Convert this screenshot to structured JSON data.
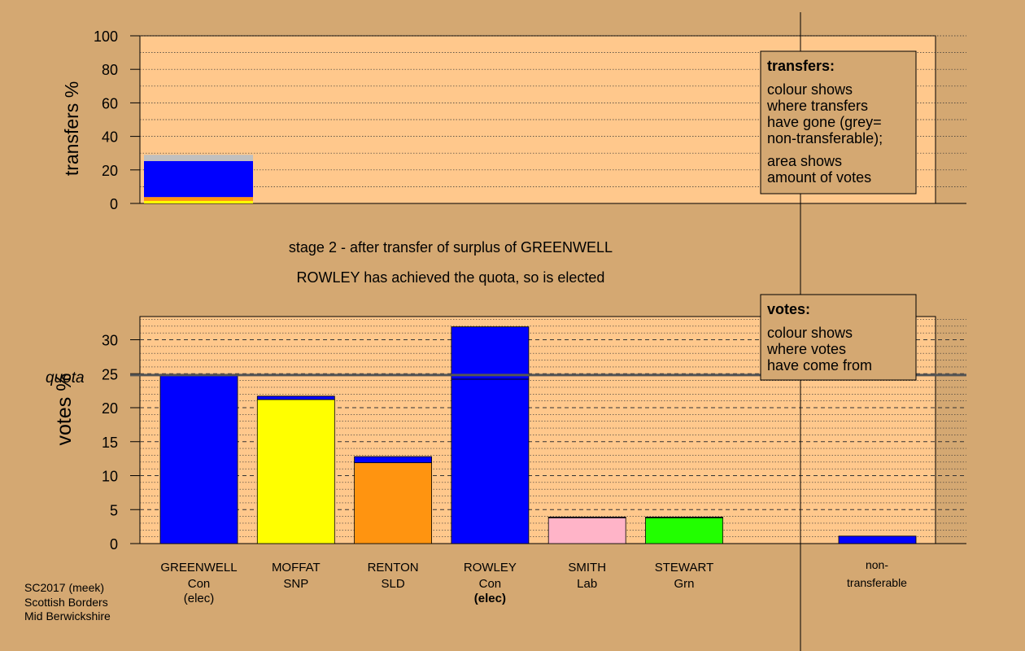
{
  "colors": {
    "background": "#d4a872",
    "plot_area": "#ffc88c",
    "con": "#0000ff",
    "snp": "#ffff00",
    "sld": "#ff9410",
    "lab": "#ffb4c8",
    "grn": "#22ff00",
    "nontransferable": "#c0c0c0"
  },
  "title_line_1": "stage 2 - after transfer of surplus of GREENWELL",
  "title_line_2": "ROWLEY has achieved the quota, so is elected",
  "footnote": {
    "line1": "SC2017 (meek)",
    "line2": "Scottish Borders",
    "line3": "Mid Berwickshire"
  },
  "chart_data": [
    {
      "type": "bar",
      "ylabel": "transfers %",
      "ylim": [
        0,
        100
      ],
      "yticks": [
        0,
        20,
        40,
        60,
        80,
        100
      ],
      "grid": true,
      "legend": {
        "heading": "transfers:",
        "para1": [
          "colour shows",
          "where transfers",
          "have gone (grey=",
          "non-transferable);"
        ],
        "para2": [
          "area shows",
          "amount of votes"
        ],
        "placement": "top-right"
      },
      "bars": [
        {
          "name": "GREENWELL",
          "segments": [
            {
              "party": "snp",
              "value": 1.5
            },
            {
              "party": "sld",
              "value": 2.3
            },
            {
              "party": "con",
              "value": 21.5
            },
            {
              "party": "nontransferable",
              "value": 3.7
            }
          ]
        }
      ]
    },
    {
      "type": "bar",
      "ylabel": "votes %",
      "ylim": [
        0,
        33
      ],
      "yticks": [
        0,
        5,
        10,
        15,
        20,
        25,
        30
      ],
      "quota": 24.8,
      "quota_label": "quota",
      "grid": true,
      "legend": {
        "heading": "votes:",
        "para1": [
          "colour shows",
          "where votes",
          "have come from"
        ],
        "placement": "top-right"
      },
      "candidates": [
        {
          "name": "GREENWELL",
          "party": "Con",
          "note": "(elec)",
          "note_bold": false,
          "segments": [
            {
              "party": "con",
              "value": 24.8
            }
          ]
        },
        {
          "name": "MOFFAT",
          "party": "SNP",
          "note": "",
          "note_bold": false,
          "segments": [
            {
              "party": "snp",
              "value": 21.2
            },
            {
              "party": "con",
              "value": 0.5
            }
          ]
        },
        {
          "name": "RENTON",
          "party": "SLD",
          "note": "",
          "note_bold": false,
          "segments": [
            {
              "party": "sld",
              "value": 11.9
            },
            {
              "party": "con",
              "value": 0.9
            }
          ]
        },
        {
          "name": "ROWLEY",
          "party": "Con",
          "note": "(elec)",
          "note_bold": true,
          "segments": [
            {
              "party": "con",
              "value": 24.2
            },
            {
              "party": "con",
              "value": 7.7
            }
          ]
        },
        {
          "name": "SMITH",
          "party": "Lab",
          "note": "",
          "note_bold": false,
          "segments": [
            {
              "party": "lab",
              "value": 3.8
            },
            {
              "party": "con",
              "value": 0.1
            }
          ]
        },
        {
          "name": "STEWART",
          "party": "Grn",
          "note": "",
          "note_bold": false,
          "segments": [
            {
              "party": "grn",
              "value": 3.8
            },
            {
              "party": "con",
              "value": 0.1
            }
          ]
        }
      ],
      "nontransferable": {
        "label_line1": "non-",
        "label_line2": "transferable",
        "segments": [
          {
            "party": "con",
            "value": 1.1
          }
        ]
      }
    }
  ]
}
